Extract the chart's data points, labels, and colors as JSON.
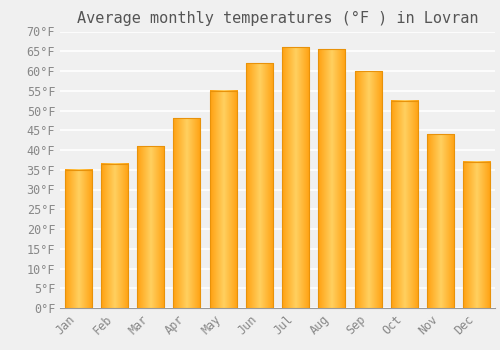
{
  "title": "Average monthly temperatures (°F ) in Lovran",
  "months": [
    "Jan",
    "Feb",
    "Mar",
    "Apr",
    "May",
    "Jun",
    "Jul",
    "Aug",
    "Sep",
    "Oct",
    "Nov",
    "Dec"
  ],
  "values": [
    35,
    36.5,
    41,
    48,
    55,
    62,
    66,
    65.5,
    60,
    52.5,
    44,
    37
  ],
  "bar_color_center": "#FFD060",
  "bar_color_edge": "#FFA010",
  "bar_edge_color": "#E8920A",
  "ylim": [
    0,
    70
  ],
  "yticks": [
    0,
    5,
    10,
    15,
    20,
    25,
    30,
    35,
    40,
    45,
    50,
    55,
    60,
    65,
    70
  ],
  "background_color": "#F0F0F0",
  "grid_color": "#FFFFFF",
  "title_fontsize": 11,
  "tick_fontsize": 8.5,
  "font_family": "monospace",
  "tick_color": "#888888",
  "title_color": "#555555",
  "bar_width": 0.75
}
